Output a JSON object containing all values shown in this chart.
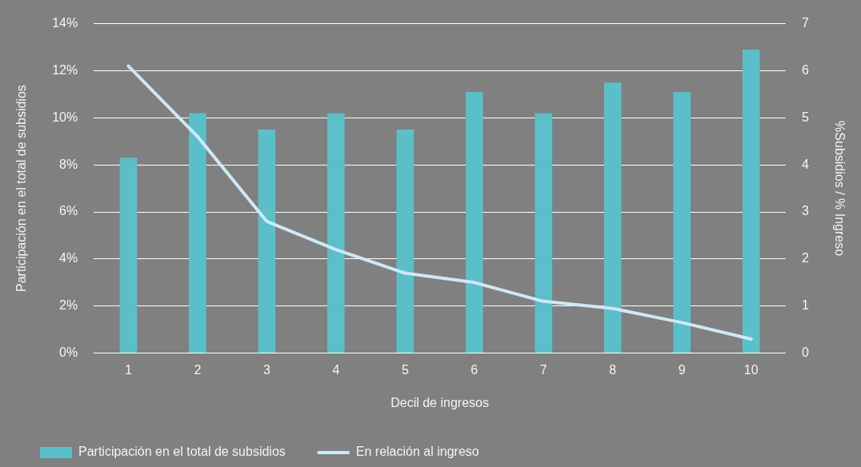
{
  "chart_data": {
    "type": "bar",
    "xlabel": "Decil de ingresos",
    "ylabel": "Participación en el total de subsidios",
    "y2label": "%Subsidios / % Ingreso",
    "categories": [
      "1",
      "2",
      "3",
      "4",
      "5",
      "6",
      "7",
      "8",
      "9",
      "10"
    ],
    "series": [
      {
        "name": "Participación en el total de subsidios",
        "color": "#5bbfc9",
        "values": [
          8.3,
          10.2,
          9.5,
          10.2,
          9.5,
          11.1,
          10.2,
          11.5,
          11.1,
          12.9
        ]
      },
      {
        "name": "En relación al ingreso",
        "type": "line",
        "axis": "y2",
        "color": "#cde9f5",
        "values": [
          6.1,
          4.6,
          2.8,
          2.2,
          1.7,
          1.5,
          1.1,
          0.95,
          0.65,
          0.3
        ]
      }
    ],
    "ylim": [
      0,
      14
    ],
    "yticks": [
      {
        "value": 0,
        "label": "0%"
      },
      {
        "value": 2,
        "label": "2%"
      },
      {
        "value": 4,
        "label": "4%"
      },
      {
        "value": 6,
        "label": "6%"
      },
      {
        "value": 8,
        "label": "8%"
      },
      {
        "value": 10,
        "label": "10%"
      },
      {
        "value": 12,
        "label": "12%"
      },
      {
        "value": 14,
        "label": "14%"
      }
    ],
    "y2lim": [
      0,
      7
    ],
    "y2ticks": [
      0,
      1,
      2,
      3,
      4,
      5,
      6,
      7
    ],
    "grid": "y",
    "legend": "bottom left",
    "marker": "none",
    "line_style": "solid"
  }
}
